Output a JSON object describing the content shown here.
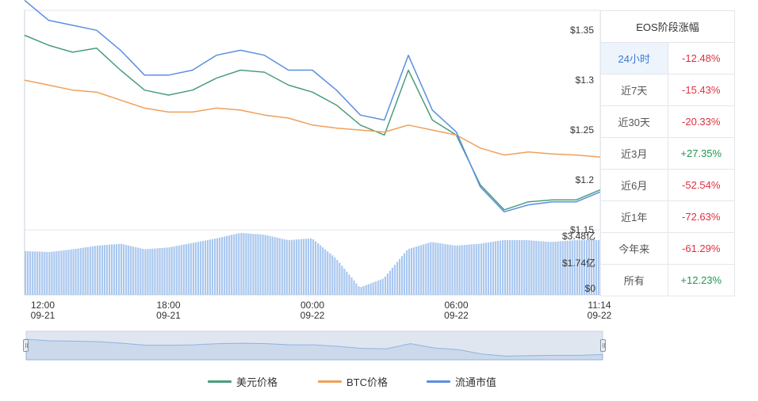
{
  "chart_data": {
    "type": "line",
    "title": "",
    "xlabel": "",
    "ylabel": "",
    "price_axis": {
      "ylim": [
        1.15,
        1.37
      ],
      "ticks": [
        "$1.35",
        "$1.3",
        "$1.25",
        "$1.2",
        "$1.15"
      ],
      "tick_values": [
        1.35,
        1.3,
        1.25,
        1.2,
        1.15
      ]
    },
    "volume_axis": {
      "ticks": [
        "$3.48亿",
        "$1.74亿",
        "$0"
      ]
    },
    "x_axis": {
      "ticks": [
        {
          "time": "12:00",
          "date": "09-21"
        },
        {
          "time": "18:00",
          "date": "09-21"
        },
        {
          "time": "00:00",
          "date": "09-22"
        },
        {
          "time": "06:00",
          "date": "09-22"
        },
        {
          "time": "11:14",
          "date": "09-22"
        }
      ]
    },
    "time_hours": [
      0,
      1,
      2,
      3,
      4,
      5,
      6,
      7,
      8,
      9,
      10,
      11,
      12,
      13,
      14,
      15,
      16,
      17,
      18,
      19,
      20,
      21,
      22,
      23,
      24
    ],
    "series": [
      {
        "name": "美元价格",
        "color": "#4a9e7a",
        "values": [
          1.345,
          1.335,
          1.328,
          1.332,
          1.31,
          1.29,
          1.285,
          1.29,
          1.302,
          1.31,
          1.308,
          1.295,
          1.288,
          1.275,
          1.255,
          1.245,
          1.31,
          1.26,
          1.245,
          1.195,
          1.17,
          1.178,
          1.18,
          1.18,
          1.19
        ]
      },
      {
        "name": "BTC价格",
        "color": "#f0a05a",
        "values": [
          1.3,
          1.295,
          1.29,
          1.288,
          1.28,
          1.272,
          1.268,
          1.268,
          1.272,
          1.27,
          1.265,
          1.262,
          1.255,
          1.252,
          1.25,
          1.248,
          1.255,
          1.25,
          1.245,
          1.232,
          1.225,
          1.228,
          1.226,
          1.225,
          1.223
        ]
      },
      {
        "name": "流通市值",
        "color": "#5b8fe0",
        "values": [
          1.38,
          1.36,
          1.355,
          1.35,
          1.33,
          1.305,
          1.305,
          1.31,
          1.325,
          1.33,
          1.325,
          1.31,
          1.31,
          1.29,
          1.265,
          1.26,
          1.325,
          1.27,
          1.248,
          1.193,
          1.168,
          1.175,
          1.178,
          1.178,
          1.188
        ]
      }
    ],
    "volume": {
      "max": 3.48,
      "unit": "亿",
      "values": [
        2.4,
        2.35,
        2.5,
        2.7,
        2.8,
        2.5,
        2.6,
        2.85,
        3.1,
        3.4,
        3.3,
        3.0,
        3.1,
        2.0,
        0.4,
        0.9,
        2.5,
        2.9,
        2.7,
        2.8,
        3.0,
        3.0,
        2.9,
        3.0,
        3.0
      ]
    },
    "grid": false,
    "legend_position": "bottom"
  },
  "period_table": {
    "title": "EOS阶段涨幅",
    "rows": [
      {
        "period": "24小时",
        "change": "-12.48%",
        "sign": "neg",
        "active": true
      },
      {
        "period": "近7天",
        "change": "-15.43%",
        "sign": "neg",
        "active": false
      },
      {
        "period": "近30天",
        "change": "-20.33%",
        "sign": "neg",
        "active": false
      },
      {
        "period": "近3月",
        "change": "+27.35%",
        "sign": "pos",
        "active": false
      },
      {
        "period": "近6月",
        "change": "-52.54%",
        "sign": "neg",
        "active": false
      },
      {
        "period": "近1年",
        "change": "-72.63%",
        "sign": "neg",
        "active": false
      },
      {
        "period": "今年来",
        "change": "-61.29%",
        "sign": "neg",
        "active": false
      },
      {
        "period": "所有",
        "change": "+12.23%",
        "sign": "pos",
        "active": false
      }
    ]
  },
  "legend": [
    {
      "label": "美元价格",
      "color": "#4a9e7a"
    },
    {
      "label": "BTC价格",
      "color": "#f0a05a"
    },
    {
      "label": "流通市值",
      "color": "#5b8fe0"
    }
  ]
}
